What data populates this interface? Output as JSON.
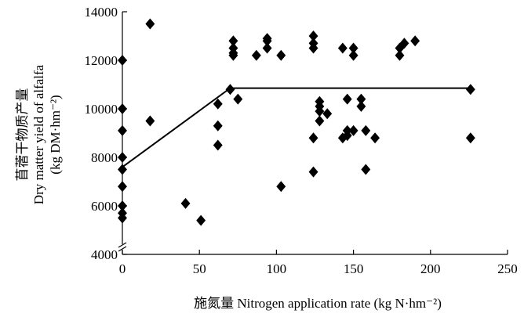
{
  "chart_data": {
    "type": "scatter",
    "xlabel": "施氮量 Nitrogen application rate (kg N·hm⁻²)",
    "ylabel": [
      "苜蓿干物质产量",
      "Dry matter yield of alfalfa",
      "(kg DM·hm⁻²)"
    ],
    "xlim": [
      0,
      250
    ],
    "ylim": [
      4000,
      14000
    ],
    "xticks": [
      0,
      50,
      100,
      150,
      200,
      250
    ],
    "yticks": [
      4000,
      6000,
      8000,
      10000,
      12000,
      14000
    ],
    "grid": false,
    "axis_break": "y",
    "series": [
      {
        "marker": "diamond",
        "points": [
          [
            0,
            12000
          ],
          [
            0,
            10000
          ],
          [
            0,
            9100
          ],
          [
            0,
            8000
          ],
          [
            0,
            7500
          ],
          [
            0,
            6800
          ],
          [
            0,
            6000
          ],
          [
            0,
            5700
          ],
          [
            0,
            5500
          ],
          [
            18,
            13500
          ],
          [
            18,
            9500
          ],
          [
            41,
            6100
          ],
          [
            51,
            5400
          ],
          [
            62,
            10200
          ],
          [
            62,
            9300
          ],
          [
            62,
            8500
          ],
          [
            70,
            10800
          ],
          [
            72,
            12800
          ],
          [
            72,
            12500
          ],
          [
            72,
            12300
          ],
          [
            72,
            12200
          ],
          [
            75,
            10400
          ],
          [
            87,
            12200
          ],
          [
            94,
            12900
          ],
          [
            94,
            12800
          ],
          [
            94,
            12500
          ],
          [
            103,
            12200
          ],
          [
            103,
            6800
          ],
          [
            124,
            13000
          ],
          [
            124,
            12700
          ],
          [
            124,
            12500
          ],
          [
            124,
            8800
          ],
          [
            124,
            7400
          ],
          [
            128,
            10300
          ],
          [
            128,
            10100
          ],
          [
            128,
            9900
          ],
          [
            128,
            9500
          ],
          [
            133,
            9800
          ],
          [
            143,
            12500
          ],
          [
            143,
            8800
          ],
          [
            146,
            10400
          ],
          [
            146,
            9100
          ],
          [
            146,
            8900
          ],
          [
            150,
            12500
          ],
          [
            150,
            12200
          ],
          [
            150,
            9100
          ],
          [
            155,
            10400
          ],
          [
            155,
            10100
          ],
          [
            158,
            9100
          ],
          [
            158,
            7500
          ],
          [
            164,
            8800
          ],
          [
            180,
            12500
          ],
          [
            180,
            12200
          ],
          [
            183,
            12700
          ],
          [
            190,
            12800
          ],
          [
            226,
            10800
          ],
          [
            226,
            8800
          ]
        ]
      }
    ],
    "fit_line": [
      [
        0,
        7600
      ],
      [
        70,
        10850
      ],
      [
        226,
        10850
      ]
    ]
  }
}
